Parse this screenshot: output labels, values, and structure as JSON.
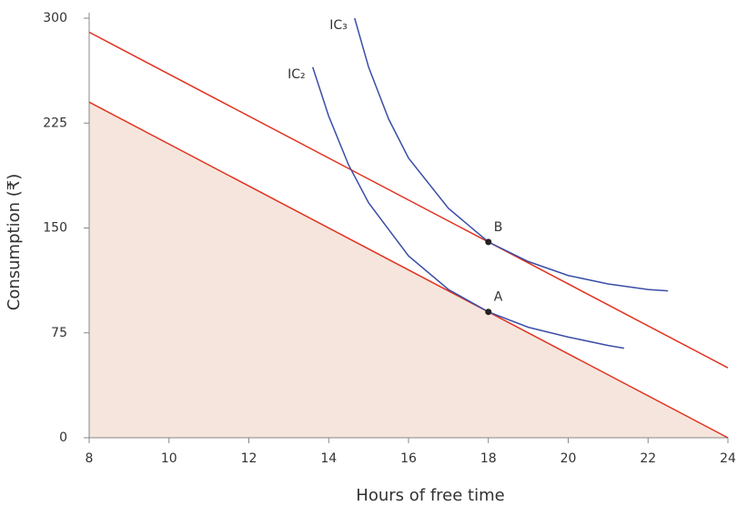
{
  "chart_data": {
    "type": "line",
    "x_label": "Hours of free time",
    "y_label": "Consumption (₹)",
    "xlim": [
      8,
      24
    ],
    "ylim": [
      0,
      300
    ],
    "xticks": [
      8,
      10,
      12,
      14,
      16,
      18,
      20,
      22,
      24
    ],
    "yticks": [
      0,
      75,
      150,
      225,
      300
    ],
    "series": [
      {
        "color": "#e2321f",
        "fill": "#f5e5dc",
        "x": [
          8,
          24
        ],
        "values": [
          240,
          0
        ]
      },
      {
        "color": "#e2321f",
        "x": [
          8,
          24
        ],
        "values": [
          290,
          50
        ]
      },
      {
        "name": "IC₂",
        "color": "#3b4ea6",
        "x": [
          13.6,
          14,
          14.5,
          15,
          16,
          17,
          18,
          19,
          20,
          21,
          21.4
        ],
        "values": [
          265,
          230,
          195,
          168,
          130,
          106,
          90,
          79,
          72,
          66,
          64
        ]
      },
      {
        "name": "IC₃",
        "color": "#3b4ea6",
        "x": [
          14.65,
          15,
          15.5,
          16,
          17,
          18,
          19,
          20,
          21,
          22,
          22.5
        ],
        "values": [
          300,
          265,
          228,
          200,
          164,
          140,
          126,
          116,
          110,
          106,
          105
        ]
      }
    ],
    "points": [
      {
        "label": "A",
        "x": 18,
        "y": 90
      },
      {
        "label": "B",
        "x": 18,
        "y": 140
      }
    ]
  }
}
